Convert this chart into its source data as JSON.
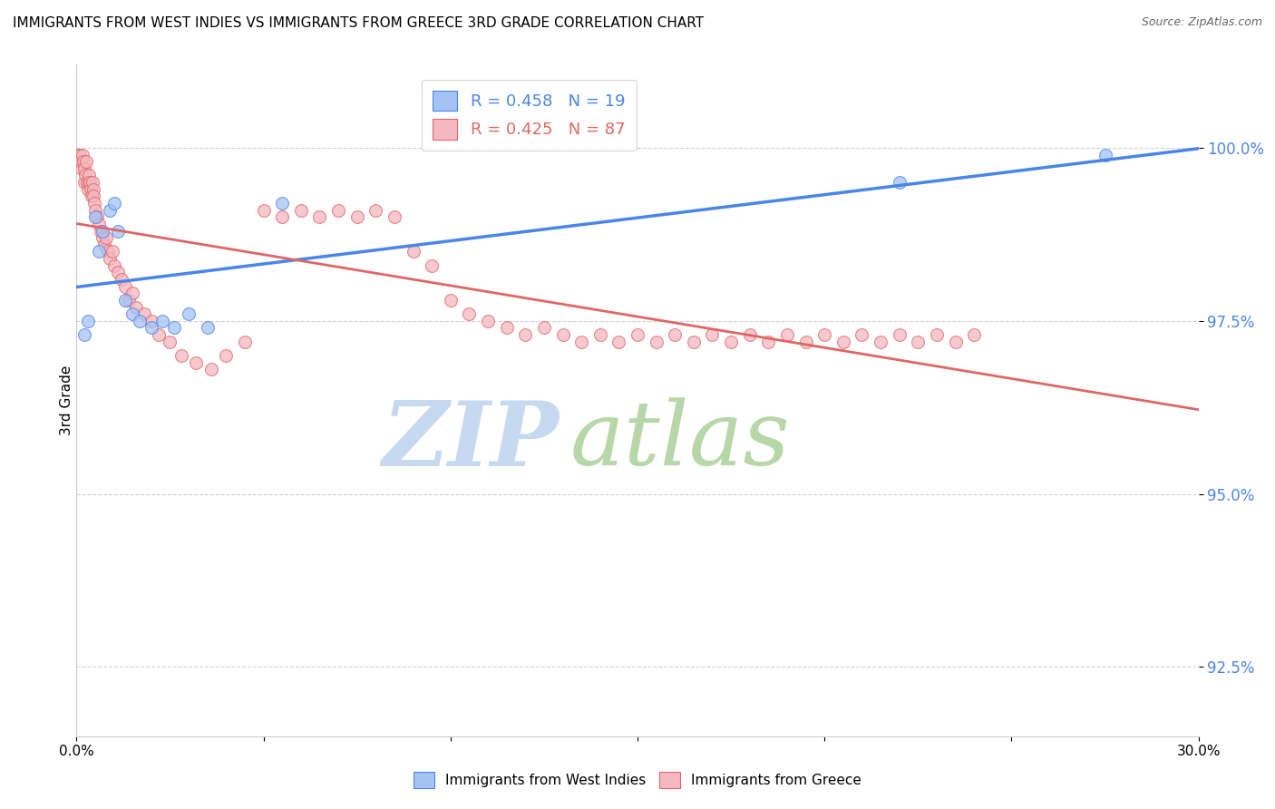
{
  "title": "IMMIGRANTS FROM WEST INDIES VS IMMIGRANTS FROM GREECE 3RD GRADE CORRELATION CHART",
  "source": "Source: ZipAtlas.com",
  "ylabel": "3rd Grade",
  "xlim": [
    0.0,
    30.0
  ],
  "ylim": [
    91.5,
    101.2
  ],
  "yticks": [
    92.5,
    95.0,
    97.5,
    100.0
  ],
  "xtick_positions": [
    0.0,
    5.0,
    10.0,
    15.0,
    20.0,
    25.0,
    30.0
  ],
  "blue_R": 0.458,
  "blue_N": 19,
  "pink_R": 0.425,
  "pink_N": 87,
  "blue_color": "#a4c2f4",
  "pink_color": "#f4b8c1",
  "blue_line_color": "#4a86e8",
  "pink_line_color": "#e06666",
  "watermark_zip": "ZIP",
  "watermark_atlas": "atlas",
  "watermark_color_zip": "#c9daf8",
  "watermark_color_atlas": "#b6d7a8",
  "blue_scatter_x": [
    0.2,
    0.3,
    0.5,
    0.6,
    0.7,
    0.9,
    1.0,
    1.1,
    1.3,
    1.5,
    1.7,
    2.0,
    2.3,
    2.6,
    3.0,
    3.5,
    5.5,
    22.0,
    27.5
  ],
  "blue_scatter_y": [
    97.3,
    97.5,
    99.0,
    98.5,
    98.8,
    99.1,
    99.2,
    98.8,
    97.8,
    97.6,
    97.5,
    97.4,
    97.5,
    97.4,
    97.6,
    97.4,
    99.2,
    99.5,
    99.9
  ],
  "pink_scatter_x": [
    0.05,
    0.08,
    0.1,
    0.12,
    0.14,
    0.16,
    0.18,
    0.2,
    0.22,
    0.24,
    0.26,
    0.28,
    0.3,
    0.32,
    0.34,
    0.36,
    0.38,
    0.4,
    0.42,
    0.44,
    0.46,
    0.48,
    0.5,
    0.55,
    0.6,
    0.65,
    0.7,
    0.75,
    0.8,
    0.85,
    0.9,
    0.95,
    1.0,
    1.1,
    1.2,
    1.3,
    1.4,
    1.5,
    1.6,
    1.8,
    2.0,
    2.2,
    2.5,
    2.8,
    3.2,
    3.6,
    4.0,
    4.5,
    5.0,
    5.5,
    6.0,
    6.5,
    7.0,
    7.5,
    8.0,
    8.5,
    9.0,
    9.5,
    10.0,
    10.5,
    11.0,
    11.5,
    12.0,
    12.5,
    13.0,
    13.5,
    14.0,
    14.5,
    15.0,
    15.5,
    16.0,
    16.5,
    17.0,
    17.5,
    18.0,
    18.5,
    19.0,
    19.5,
    20.0,
    20.5,
    21.0,
    21.5,
    22.0,
    22.5,
    23.0,
    23.5,
    24.0
  ],
  "pink_scatter_y": [
    99.9,
    99.8,
    99.9,
    99.8,
    99.7,
    99.9,
    99.8,
    99.5,
    99.7,
    99.6,
    99.8,
    99.5,
    99.4,
    99.5,
    99.6,
    99.5,
    99.4,
    99.3,
    99.5,
    99.4,
    99.3,
    99.2,
    99.1,
    99.0,
    98.9,
    98.8,
    98.7,
    98.6,
    98.7,
    98.5,
    98.4,
    98.5,
    98.3,
    98.2,
    98.1,
    98.0,
    97.8,
    97.9,
    97.7,
    97.6,
    97.5,
    97.3,
    97.2,
    97.0,
    96.9,
    96.8,
    97.0,
    97.2,
    99.1,
    99.0,
    99.1,
    99.0,
    99.1,
    99.0,
    99.1,
    99.0,
    98.5,
    98.3,
    97.8,
    97.6,
    97.5,
    97.4,
    97.3,
    97.4,
    97.3,
    97.2,
    97.3,
    97.2,
    97.3,
    97.2,
    97.3,
    97.2,
    97.3,
    97.2,
    97.3,
    97.2,
    97.3,
    97.2,
    97.3,
    97.2,
    97.3,
    97.2,
    97.3,
    97.2,
    97.3,
    97.2,
    97.3
  ]
}
